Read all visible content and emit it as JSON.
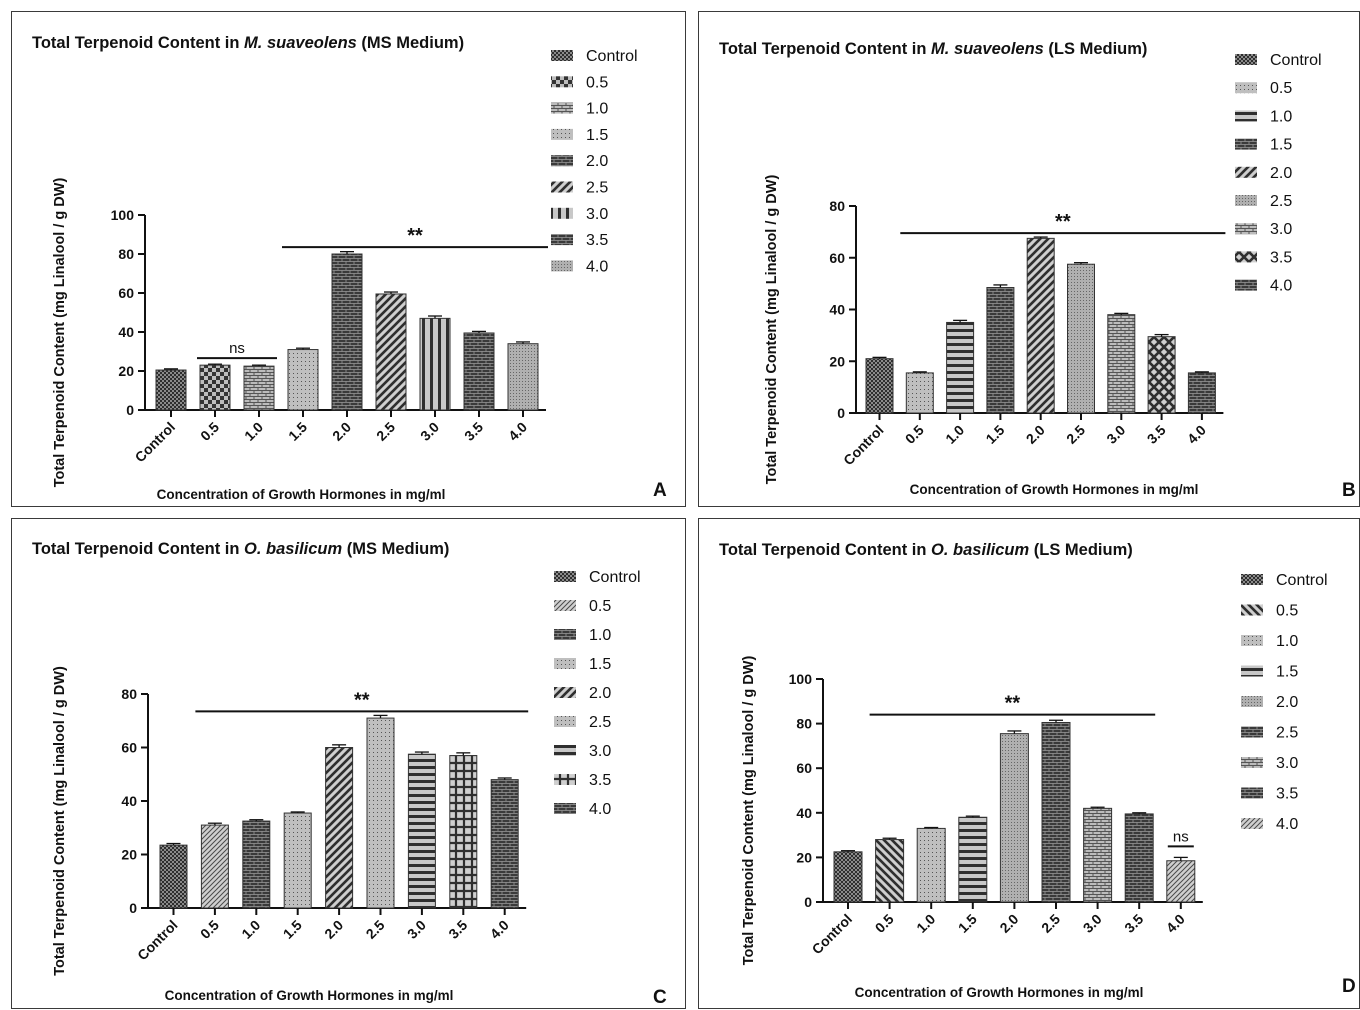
{
  "figure": {
    "panels": [
      {
        "letter": "A",
        "title_prefix": "Total Terpenoid Content in ",
        "title_species": "M. suaveolens",
        "title_suffix": " (MS Medium)"
      },
      {
        "letter": "B",
        "title_prefix": "Total Terpenoid Content in ",
        "title_species": "M. suaveolens",
        "title_suffix": " (LS Medium)"
      },
      {
        "letter": "C",
        "title_prefix": "Total Terpenoid Content in ",
        "title_species": "O. basilicum",
        "title_suffix": " (MS Medium)"
      },
      {
        "letter": "D",
        "title_prefix": "Total Terpenoid Content in ",
        "title_species": "O. basilicum",
        "title_suffix": " (LS Medium)"
      }
    ]
  },
  "chart_data": [
    {
      "panel": "A",
      "type": "bar",
      "title": "Total Terpenoid Content in M. suaveolens (MS Medium)",
      "xlabel": "Concentration of Growth Hormones in mg/ml",
      "ylabel": "Total Terpenoid Content (mg Linalool / g DW)",
      "ylim": [
        0,
        100
      ],
      "yticks": [
        "0",
        "20",
        "40",
        "60",
        "80",
        "100"
      ],
      "categories": [
        "Control",
        "0.5",
        "1.0",
        "1.5",
        "2.0",
        "2.5",
        "3.0",
        "3.5",
        "4.0"
      ],
      "values": [
        20.5,
        23,
        22.5,
        31,
        80,
        59.5,
        47,
        39.5,
        34
      ],
      "errors": [
        0.6,
        0.5,
        0.5,
        0.7,
        1.2,
        1.0,
        1.2,
        0.8,
        0.9
      ],
      "legend": [
        "Control",
        "0.5",
        "1.0",
        "1.5",
        "2.0",
        "2.5",
        "3.0",
        "3.5",
        "4.0"
      ],
      "legend_position": "right",
      "annotations": [
        {
          "text": "ns",
          "from": "0.5",
          "to": "1.0"
        },
        {
          "text": "**",
          "from": "1.5",
          "to": "4.0"
        }
      ]
    },
    {
      "panel": "B",
      "type": "bar",
      "title": "Total Terpenoid Content in M. suaveolens (LS Medium)",
      "xlabel": "Concentration of Growth Hormones in mg/ml",
      "ylabel": "Total Terpenoid Content (mg Linalool / g DW)",
      "ylim": [
        0,
        80
      ],
      "yticks": [
        "0",
        "20",
        "40",
        "60",
        "80"
      ],
      "categories": [
        "Control",
        "0.5",
        "1.0",
        "1.5",
        "2.0",
        "2.5",
        "3.0",
        "3.5",
        "4.0"
      ],
      "values": [
        21,
        15.5,
        35,
        48.5,
        67.5,
        57.5,
        38,
        29.5,
        15.5
      ],
      "errors": [
        0.5,
        0.4,
        0.8,
        1.0,
        0.5,
        0.6,
        0.5,
        0.8,
        0.4
      ],
      "legend": [
        "Control",
        "0.5",
        "1.0",
        "1.5",
        "2.0",
        "2.5",
        "3.0",
        "3.5",
        "4.0"
      ],
      "legend_position": "right",
      "annotations": [
        {
          "text": "**",
          "from": "0.5",
          "to": "4.0"
        }
      ]
    },
    {
      "panel": "C",
      "type": "bar",
      "title": "Total Terpenoid Content in O. basilicum (MS Medium)",
      "xlabel": "Concentration of Growth Hormones in mg/ml",
      "ylabel": "Total Terpenoid Content (mg Linalool / g DW)",
      "ylim": [
        0,
        80
      ],
      "yticks": [
        "0",
        "20",
        "40",
        "60",
        "80"
      ],
      "categories": [
        "Control",
        "0.5",
        "1.0",
        "1.5",
        "2.0",
        "2.5",
        "3.0",
        "3.5",
        "4.0"
      ],
      "values": [
        23.5,
        31,
        32.5,
        35.5,
        60,
        71,
        57.5,
        57,
        48
      ],
      "errors": [
        0.6,
        0.7,
        0.5,
        0.4,
        1.0,
        1.0,
        0.8,
        1.0,
        0.6
      ],
      "legend": [
        "Control",
        "0.5",
        "1.0",
        "1.5",
        "2.0",
        "2.5",
        "3.0",
        "3.5",
        "4.0"
      ],
      "legend_position": "right",
      "annotations": [
        {
          "text": "**",
          "from": "0.5",
          "to": "4.0"
        }
      ]
    },
    {
      "panel": "D",
      "type": "bar",
      "title": "Total Terpenoid Content in O. basilicum (LS Medium)",
      "xlabel": "Concentration of Growth Hormones in mg/ml",
      "ylabel": "Total Terpenoid Content (mg Linalool / g DW)",
      "ylim": [
        0,
        100
      ],
      "yticks": [
        "0",
        "20",
        "40",
        "60",
        "80",
        "100"
      ],
      "categories": [
        "Control",
        "0.5",
        "1.0",
        "1.5",
        "2.0",
        "2.5",
        "3.0",
        "3.5",
        "4.0"
      ],
      "values": [
        22.5,
        28,
        33,
        38,
        75.5,
        80.5,
        42,
        39.5,
        18.5
      ],
      "errors": [
        0.5,
        0.6,
        0.4,
        0.5,
        1.2,
        1.0,
        0.5,
        0.5,
        1.5
      ],
      "legend": [
        "Control",
        "0.5",
        "1.0",
        "1.5",
        "2.0",
        "2.5",
        "3.0",
        "3.5",
        "4.0"
      ],
      "legend_position": "right",
      "annotations": [
        {
          "text": "**",
          "from": "0.5",
          "to": "3.5"
        },
        {
          "text": "ns",
          "from": "4.0",
          "to": "4.0"
        }
      ]
    }
  ]
}
